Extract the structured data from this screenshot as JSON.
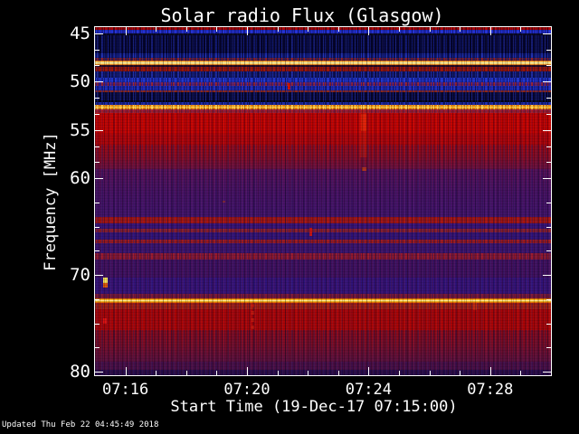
{
  "page": {
    "updated": "Updated Thu Feb 22 04:45:49 2018"
  },
  "chart_data": {
    "type": "heatmap",
    "subtype": "radio-spectrogram",
    "title": "Solar radio Flux (Glasgow)",
    "xlabel": "Start Time (19-Dec-17 07:15:00)",
    "ylabel": "Frequency [MHz]",
    "x_start_time": "07:15:00",
    "x_end_time": "07:30:00",
    "x_range_minutes": [
      0,
      15
    ],
    "x_ticks": [
      {
        "m": 1,
        "label": "07:16"
      },
      {
        "m": 5,
        "label": "07:20"
      },
      {
        "m": 9,
        "label": "07:24"
      },
      {
        "m": 13,
        "label": "07:28"
      }
    ],
    "x_minor_ticks_minutes": [
      2,
      3,
      4,
      6,
      7,
      8,
      10,
      11,
      12,
      14
    ],
    "y_range_mhz": [
      44.37,
      80.37
    ],
    "y_ticks": [
      {
        "f": 45,
        "label": "45"
      },
      {
        "f": 50,
        "label": "50"
      },
      {
        "f": 55,
        "label": "55"
      },
      {
        "f": 60,
        "label": "60"
      },
      {
        "f": 70,
        "label": "70"
      },
      {
        "f": 80,
        "label": "80"
      }
    ],
    "y_minor_ticks_mhz": [
      46.67,
      48.33,
      51.67,
      53.33,
      56.67,
      58.33,
      62.5,
      65,
      67.5,
      72.5,
      75,
      77.5
    ],
    "colormap": "blue=low intensity, red=high, yellow/white=highest",
    "bands": [
      {
        "f0": 44.37,
        "f1": 44.62,
        "c": "#b00000",
        "c2": "#500008"
      },
      {
        "f0": 44.62,
        "f1": 45.0,
        "c": "#2430d6",
        "c2": "#101880"
      },
      {
        "f0": 45.0,
        "f1": 45.2,
        "c": "#070726"
      },
      {
        "f0": 45.2,
        "f1": 47.1,
        "c": "#04042c",
        "c2": "#16208a"
      },
      {
        "f0": 47.1,
        "f1": 47.58,
        "c": "#0a1260",
        "c2": "#2538cc"
      },
      {
        "f0": 47.58,
        "f1": 47.82,
        "c": "#3a1a50",
        "c2": "#b02010"
      },
      {
        "f0": 47.82,
        "f1": 48.28,
        "grad": [
          "#c03000",
          "#ffd24a",
          "#fff8d0",
          "#ffd24a",
          "#b03000"
        ]
      },
      {
        "f0": 48.28,
        "f1": 48.46,
        "c": "#200826"
      },
      {
        "f0": 48.46,
        "f1": 48.97,
        "c": "#a01406",
        "c2": "#481030"
      },
      {
        "f0": 48.97,
        "f1": 49.58,
        "c": "#0c1258",
        "c2": "#2030b8"
      },
      {
        "f0": 49.58,
        "f1": 50.1,
        "c": "#2136d2",
        "c2": "#0e1670"
      },
      {
        "f0": 50.1,
        "f1": 50.42,
        "c": "#3c1e8c",
        "c2": "#b42410"
      },
      {
        "f0": 50.42,
        "f1": 50.88,
        "c": "#1e2cc0",
        "c2": "#0c1260"
      },
      {
        "f0": 50.88,
        "f1": 51.12,
        "c": "#8c2412",
        "c2": "#3a2070"
      },
      {
        "f0": 51.12,
        "f1": 51.9,
        "c": "#05052e",
        "c2": "#18228a"
      },
      {
        "f0": 51.9,
        "f1": 52.1,
        "c": "#020214",
        "c2": "#0c1448"
      },
      {
        "f0": 52.1,
        "f1": 52.38,
        "c": "#1c2cb4",
        "c2": "#0a1050"
      },
      {
        "f0": 52.38,
        "f1": 52.86,
        "grad": [
          "#d05800",
          "#ff9c00",
          "#ffc840",
          "#ff8c00",
          "#c04800"
        ],
        "c2": "#ffe070"
      },
      {
        "f0": 52.86,
        "f1": 53.28,
        "c": "#8c1c3c",
        "c2": "#b42020"
      },
      {
        "f0": 53.28,
        "f1": 55.42,
        "c": "#c60400",
        "c2": "#9c0010"
      },
      {
        "f0": 55.42,
        "f1": 56.55,
        "c": "#b20408",
        "c2": "#8c0414"
      },
      {
        "f0": 56.55,
        "f1": 59.08,
        "grad": [
          "#a4060f",
          "#8c0a22",
          "#6c1042"
        ],
        "c2": "#55103a"
      },
      {
        "f0": 59.08,
        "f1": 64.02,
        "grad": [
          "#5c1156",
          "#4a1264",
          "#44146e"
        ],
        "c2": "#32105a"
      },
      {
        "f0": 64.02,
        "f1": 64.68,
        "c": "#a81410",
        "c2": "#6c1430"
      },
      {
        "f0": 64.68,
        "f1": 65.2,
        "c": "#3c1478",
        "c2": "#28106a"
      },
      {
        "f0": 65.2,
        "f1": 65.62,
        "c": "#8c1e2e",
        "c2": "#4c1650"
      },
      {
        "f0": 65.62,
        "f1": 66.36,
        "c": "#38146e",
        "c2": "#241080"
      },
      {
        "f0": 66.36,
        "f1": 66.7,
        "c": "#9c1820",
        "c2": "#521644"
      },
      {
        "f0": 66.7,
        "f1": 67.76,
        "c": "#401466",
        "c2": "#2c1278"
      },
      {
        "f0": 67.76,
        "f1": 68.42,
        "c": "#6e163e",
        "c2": "#aa1a24"
      },
      {
        "f0": 68.42,
        "f1": 70.28,
        "c": "#44105e",
        "c2": "#301262"
      },
      {
        "f0": 70.28,
        "f1": 71.98,
        "c": "#3a1270",
        "c2": "#2a1480"
      },
      {
        "f0": 71.98,
        "f1": 72.4,
        "c": "#641640",
        "c2": "#8c1830"
      },
      {
        "f0": 72.4,
        "f1": 72.92,
        "grad": [
          "#d04800",
          "#ffb400",
          "#fff0b4",
          "#ffb400",
          "#c83800"
        ]
      },
      {
        "f0": 72.92,
        "f1": 73.58,
        "c": "#a81e10",
        "c2": "#701a30"
      },
      {
        "f0": 73.58,
        "f1": 75.72,
        "c": "#ac0406",
        "c2": "#860818"
      },
      {
        "f0": 75.72,
        "f1": 79.0,
        "grad": [
          "#920818",
          "#7c0c28",
          "#5c1040"
        ],
        "c2": "#4a0e34"
      },
      {
        "f0": 79.0,
        "f1": 79.84,
        "c": "#4c0e44",
        "c2": "#38104e"
      },
      {
        "f0": 79.84,
        "f1": 80.37,
        "c": "#2e0c46",
        "c2": "#1e0a50"
      }
    ],
    "events": [
      {
        "name": "bright-red-spot-0721-50.5MHz",
        "m0": 6.34,
        "m1": 6.43,
        "f0": 50.17,
        "f1": 50.82,
        "c": "#d41200"
      },
      {
        "name": "faint-red-spot-0719-62.4MHz",
        "m0": 4.2,
        "m1": 4.29,
        "f0": 62.3,
        "f1": 62.55,
        "c": "#7a2438"
      },
      {
        "name": "red-dash-0722-65.5MHz",
        "m0": 7.05,
        "m1": 7.14,
        "f0": 65.13,
        "f1": 65.97,
        "c": "#c41414"
      },
      {
        "name": "vertical-streak-0724",
        "m0": 8.72,
        "m1": 8.96,
        "f0": 52.9,
        "f1": 57.8,
        "c": "rgba(220,40,10,0.30)"
      },
      {
        "name": "vertical-streak-core-0724",
        "m0": 8.75,
        "m1": 8.93,
        "f0": 53.3,
        "f1": 55.1,
        "c": "rgba(240,50,10,0.55)"
      },
      {
        "name": "faint-red-spot-0724-59MHz",
        "m0": 8.78,
        "m1": 8.93,
        "f0": 58.86,
        "f1": 59.23,
        "c": "#a8301e"
      },
      {
        "name": "yellow-spot-0715-70.5MHz",
        "m0": 0.27,
        "m1": 0.42,
        "f0": 70.27,
        "f1": 70.83,
        "c": "#ffe65a"
      },
      {
        "name": "orange-spot-0715-71.1MHz",
        "m0": 0.27,
        "m1": 0.42,
        "f0": 70.83,
        "f1": 71.3,
        "c": "#e05a08"
      },
      {
        "name": "red-spot-0715-74.8MHz",
        "m0": 0.27,
        "m1": 0.39,
        "f0": 74.5,
        "f1": 75.05,
        "c": "#e01212"
      },
      {
        "name": "dashed-streak-0720",
        "m0": 5.15,
        "m1": 5.23,
        "f0": 72.98,
        "f1": 75.95,
        "c": "#cc1a0e",
        "dash": true
      },
      {
        "name": "faint-dash-0727",
        "m0": 12.45,
        "m1": 12.56,
        "f0": 72.92,
        "f1": 73.6,
        "c": "rgba(230,60,20,0.40)"
      }
    ]
  }
}
